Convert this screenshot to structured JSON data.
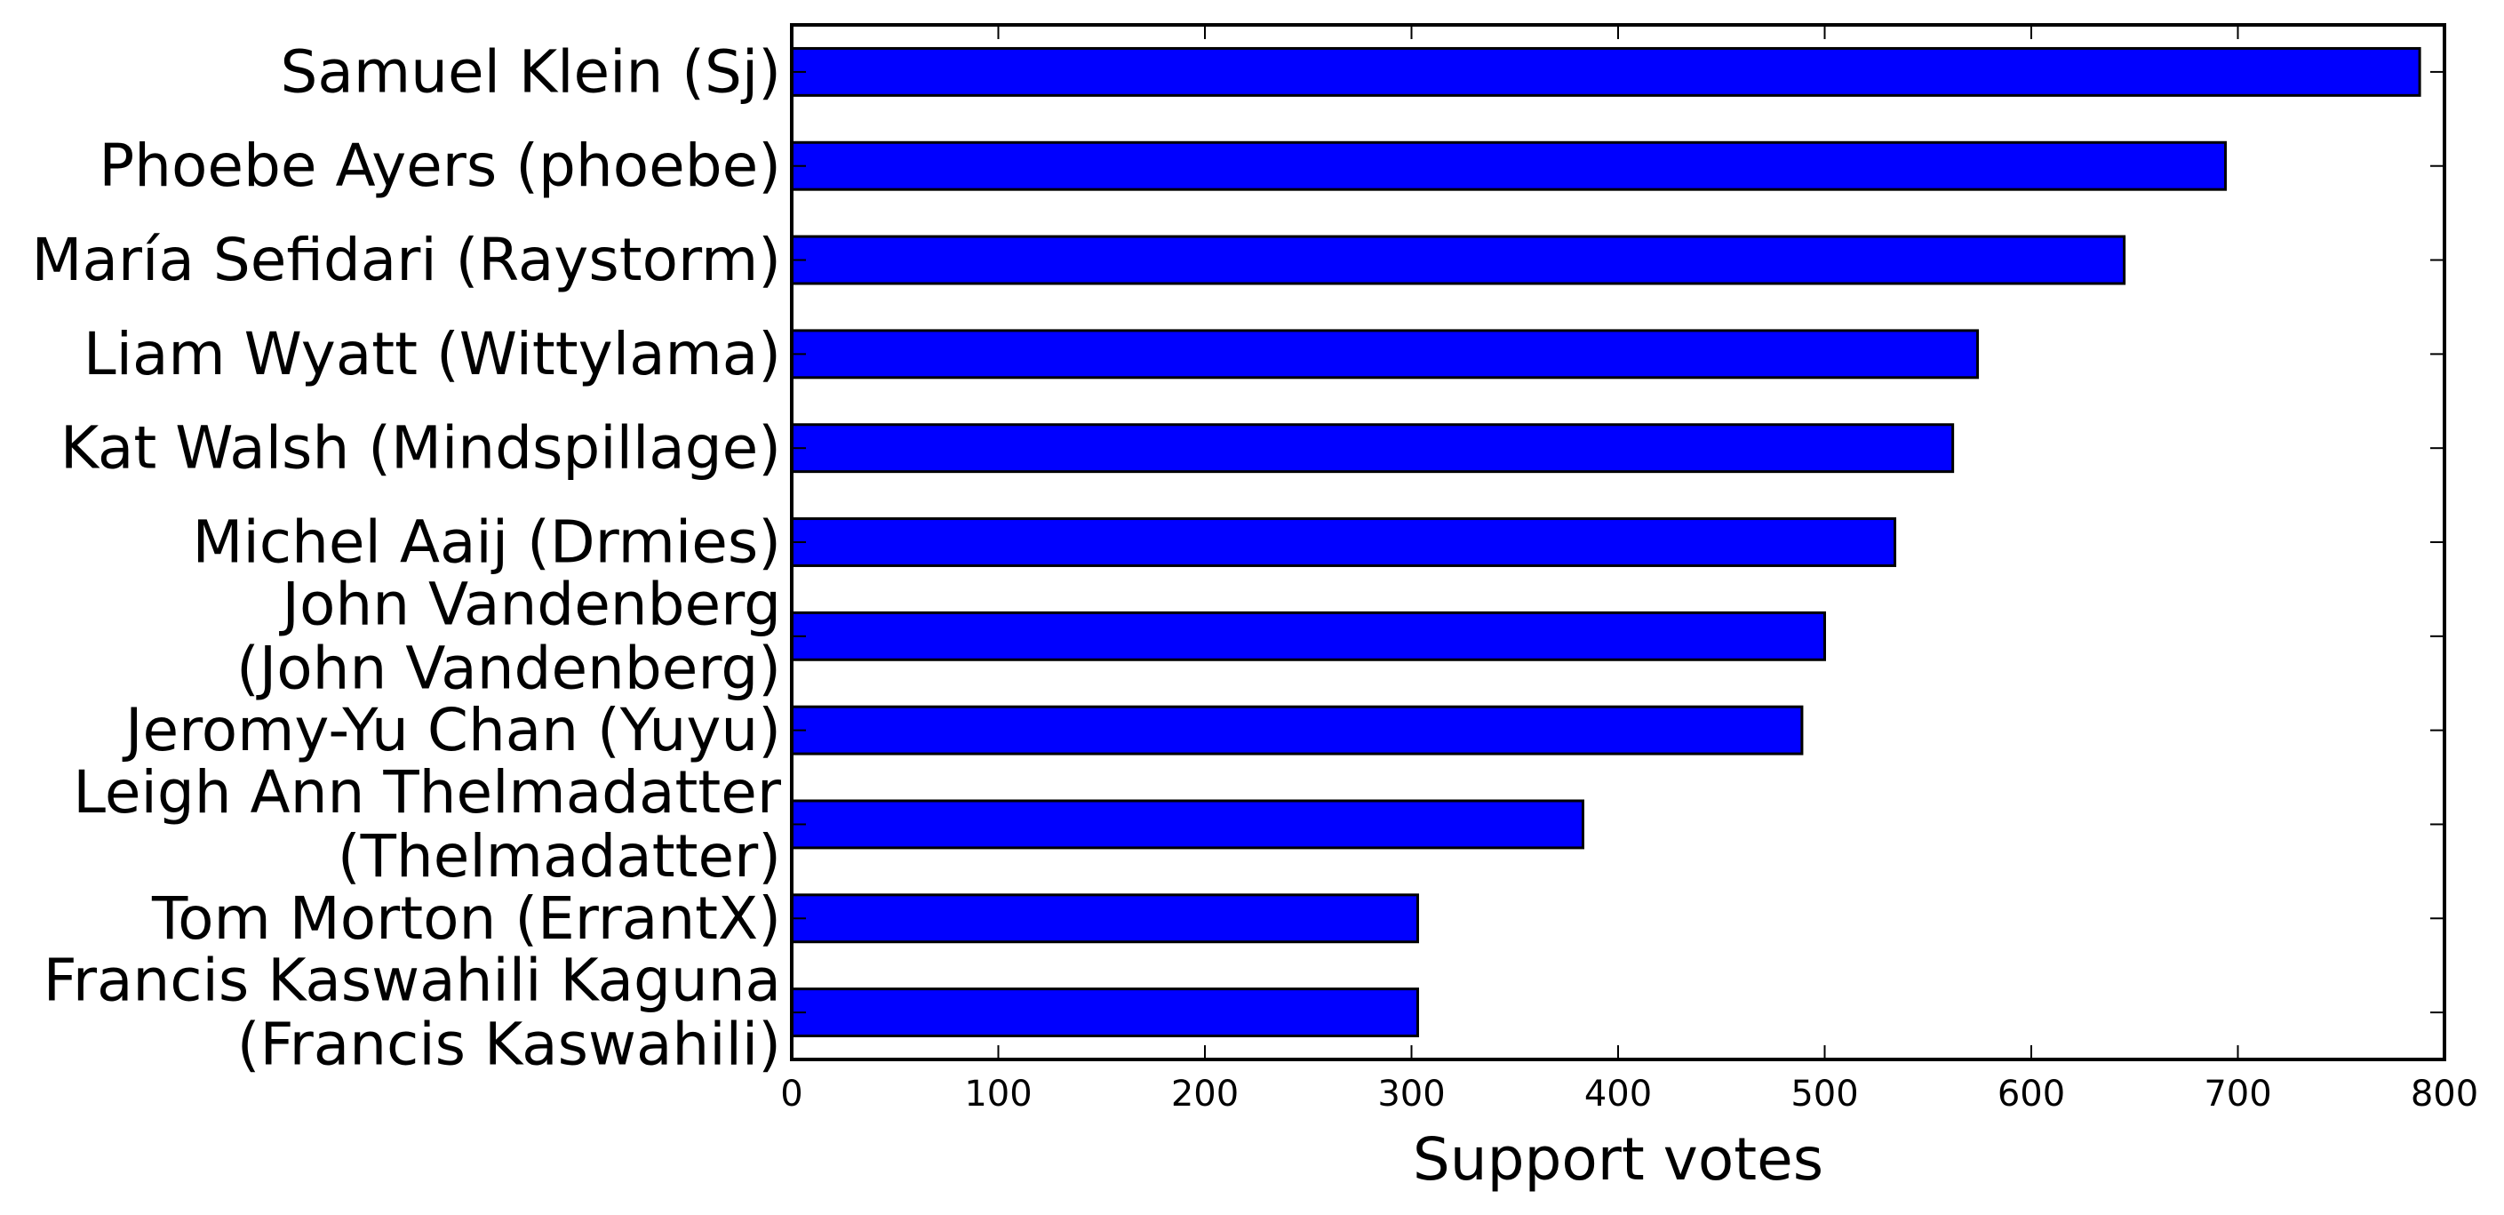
{
  "chart_data": {
    "type": "bar",
    "orientation": "horizontal",
    "categories": [
      "Samuel Klein (Sj)",
      "Phoebe Ayers (phoebe)",
      "María Sefidari (Raystorm)",
      "Liam Wyatt (Wittylama)",
      "Kat Walsh (Mindspillage)",
      "Michel Aaij (Drmies)",
      "John Vandenberg\n(John Vandenberg)",
      "Jeromy-Yu Chan (Yuyu)",
      "Leigh Ann Thelmadatter\n(Thelmadatter)",
      "Tom Morton (ErrantX)",
      "Francis Kaswahili Kaguna\n(Francis Kaswahili)"
    ],
    "values": [
      788,
      694,
      645,
      574,
      562,
      534,
      500,
      489,
      383,
      303,
      303
    ],
    "xlabel": "Support votes",
    "ylabel": "",
    "xlim": [
      0,
      800
    ],
    "xticks": [
      "0",
      "100",
      "200",
      "300",
      "400",
      "500",
      "600",
      "700",
      "800"
    ],
    "bar_color": "#0000ff",
    "edge_color": "#000000",
    "grid": false,
    "legend": "none"
  }
}
